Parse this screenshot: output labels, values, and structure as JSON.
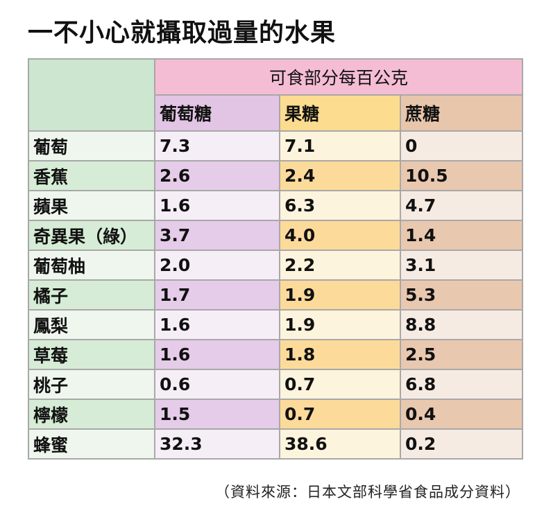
{
  "title": "一不小心就攝取過量的水果",
  "table": {
    "group_header": "可食部分每百公克",
    "columns": [
      "葡萄糖",
      "果糖",
      "蔗糖"
    ],
    "rows": [
      {
        "fruit": "葡萄",
        "glucose": "7.3",
        "fructose": "7.1",
        "sucrose": "0"
      },
      {
        "fruit": "香蕉",
        "glucose": "2.6",
        "fructose": "2.4",
        "sucrose": "10.5"
      },
      {
        "fruit": "蘋果",
        "glucose": "1.6",
        "fructose": "6.3",
        "sucrose": "4.7"
      },
      {
        "fruit": "奇異果（綠）",
        "glucose": "3.7",
        "fructose": "4.0",
        "sucrose": "1.4"
      },
      {
        "fruit": "葡萄柚",
        "glucose": "2.0",
        "fructose": "2.2",
        "sucrose": "3.1"
      },
      {
        "fruit": "橘子",
        "glucose": "1.7",
        "fructose": "1.9",
        "sucrose": "5.3"
      },
      {
        "fruit": "鳳梨",
        "glucose": "1.6",
        "fructose": "1.9",
        "sucrose": "8.8"
      },
      {
        "fruit": "草莓",
        "glucose": "1.6",
        "fructose": "1.8",
        "sucrose": "2.5"
      },
      {
        "fruit": "桃子",
        "glucose": "0.6",
        "fructose": "0.7",
        "sucrose": "6.8"
      },
      {
        "fruit": "檸檬",
        "glucose": "1.5",
        "fructose": "0.7",
        "sucrose": "0.4"
      },
      {
        "fruit": "蜂蜜",
        "glucose": "32.3",
        "fructose": "38.6",
        "sucrose": "0.2"
      }
    ]
  },
  "source": "（資料來源：日本文部科學省食品成分資料）",
  "colors": {
    "fruit_dark": "#d6ecd6",
    "fruit_light": "#eef6ee",
    "glucose_dark": "#e5cce8",
    "glucose_light": "#f6eef7",
    "fructose_dark": "#fcdb9a",
    "fructose_light": "#fdf4dd",
    "sucrose_dark": "#e9c8b0",
    "sucrose_light": "#f6ebe3",
    "group_header": "#f5bdd4"
  }
}
